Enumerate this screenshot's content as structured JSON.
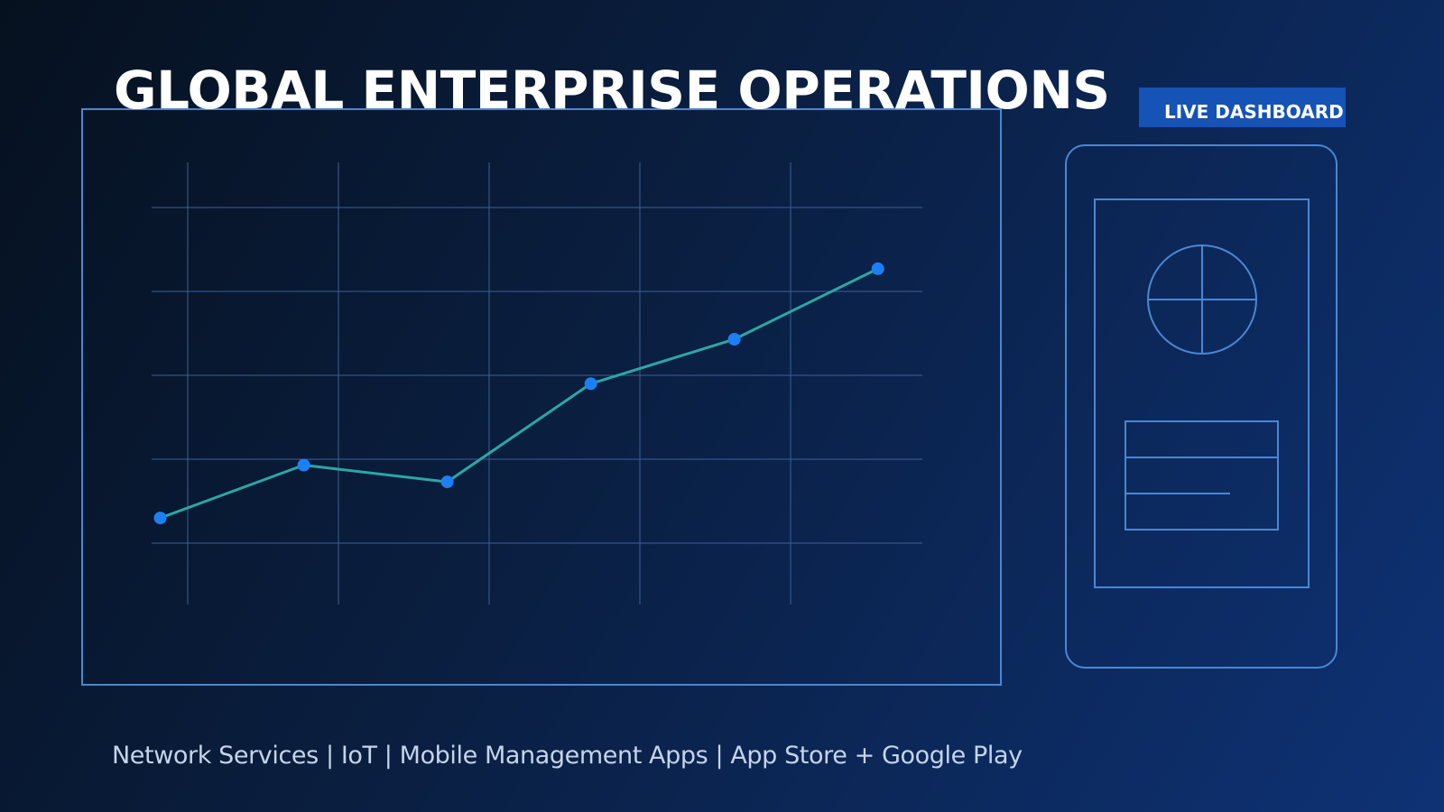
{
  "header": {
    "title": "GLOBAL ENTERPRISE OPERATIONS",
    "badge_label": "LIVE DASHBOARD"
  },
  "footer": {
    "tagline": "Network Services | IoT | Mobile Management Apps | App Store + Google Play"
  },
  "colors": {
    "background_start": "#06111f",
    "background_end": "#0e3275",
    "frame_stroke": "#4a87d2",
    "badge_fill": "#1553b6",
    "line_stroke": "#2aa7a6",
    "point_fill": "#1d7ff4",
    "grid": "#3d5f96"
  },
  "phone_mockup": {
    "icons": [
      "globe-icon",
      "card-icon"
    ]
  },
  "chart_data": {
    "type": "line",
    "title": "",
    "xlabel": "",
    "ylabel": "",
    "grid": true,
    "legend": "none",
    "x": [
      1,
      2,
      3,
      4,
      5,
      6
    ],
    "series": [
      {
        "values": [
          0.3,
          0.93,
          0.73,
          1.9,
          2.43,
          3.27
        ]
      }
    ],
    "xlim": [
      0.94,
      6.31
    ],
    "ylim": [
      0,
      4
    ]
  }
}
